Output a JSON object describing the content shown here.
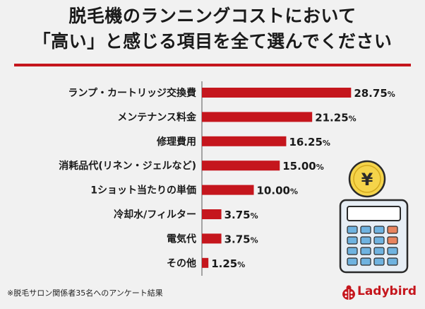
{
  "title_line1": "脱毛機のランニングコストにおいて",
  "title_line2": "「高い」と感じる項目を全て選んでください",
  "footnote": "※脱毛サロン関係者35名へのアンケート結果",
  "brand": "Ladybird",
  "currency_symbol": "¥",
  "colors": {
    "bar": "#c5161d",
    "accent": "#c5161d"
  },
  "chart_data": {
    "type": "bar",
    "orientation": "horizontal",
    "categories": [
      "ランプ・カートリッジ交換費",
      "メンテナンス料金",
      "修理費用",
      "消耗品代(リネン・ジェルなど)",
      "1ショット当たりの単価",
      "冷却水/フィルター",
      "電気代",
      "その他"
    ],
    "values": [
      28.75,
      21.25,
      16.25,
      15.0,
      10.0,
      3.75,
      3.75,
      1.25
    ],
    "value_labels": [
      "28.75",
      "21.25",
      "16.25",
      "15.00",
      "10.00",
      "3.75",
      "3.75",
      "1.25"
    ],
    "unit": "%",
    "xlim": [
      0,
      30
    ],
    "grid": false
  }
}
